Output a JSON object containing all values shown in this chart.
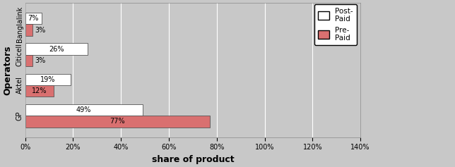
{
  "operators": [
    "GP",
    "Aktel",
    "Citicell",
    "Banglalink"
  ],
  "post_paid": [
    49,
    19,
    26,
    7
  ],
  "pre_paid": [
    77,
    12,
    3,
    3
  ],
  "post_paid_labels": [
    "49%",
    "19%",
    "26%",
    "7%"
  ],
  "pre_paid_labels": [
    "77%",
    "12%",
    "3%",
    "3%"
  ],
  "post_paid_color": "#FFFFFF",
  "pre_paid_color": "#D97070",
  "bar_edge_color": "#555555",
  "background_color": "#C8C8C8",
  "plot_bg_color": "#C8C8C8",
  "xlabel": "share of product",
  "ylabel": "Operators",
  "xlim": [
    0,
    140
  ],
  "xticks": [
    0,
    20,
    40,
    60,
    80,
    100,
    120,
    140
  ],
  "xtick_labels": [
    "0%",
    "20%",
    "40%",
    "60%",
    "80%",
    "100%",
    "120%",
    "140%"
  ],
  "legend_post": "Post-\nPaid",
  "legend_pre": "Pre-\nPaid",
  "bar_height": 0.38,
  "label_fontsize": 7,
  "axis_fontsize": 9
}
